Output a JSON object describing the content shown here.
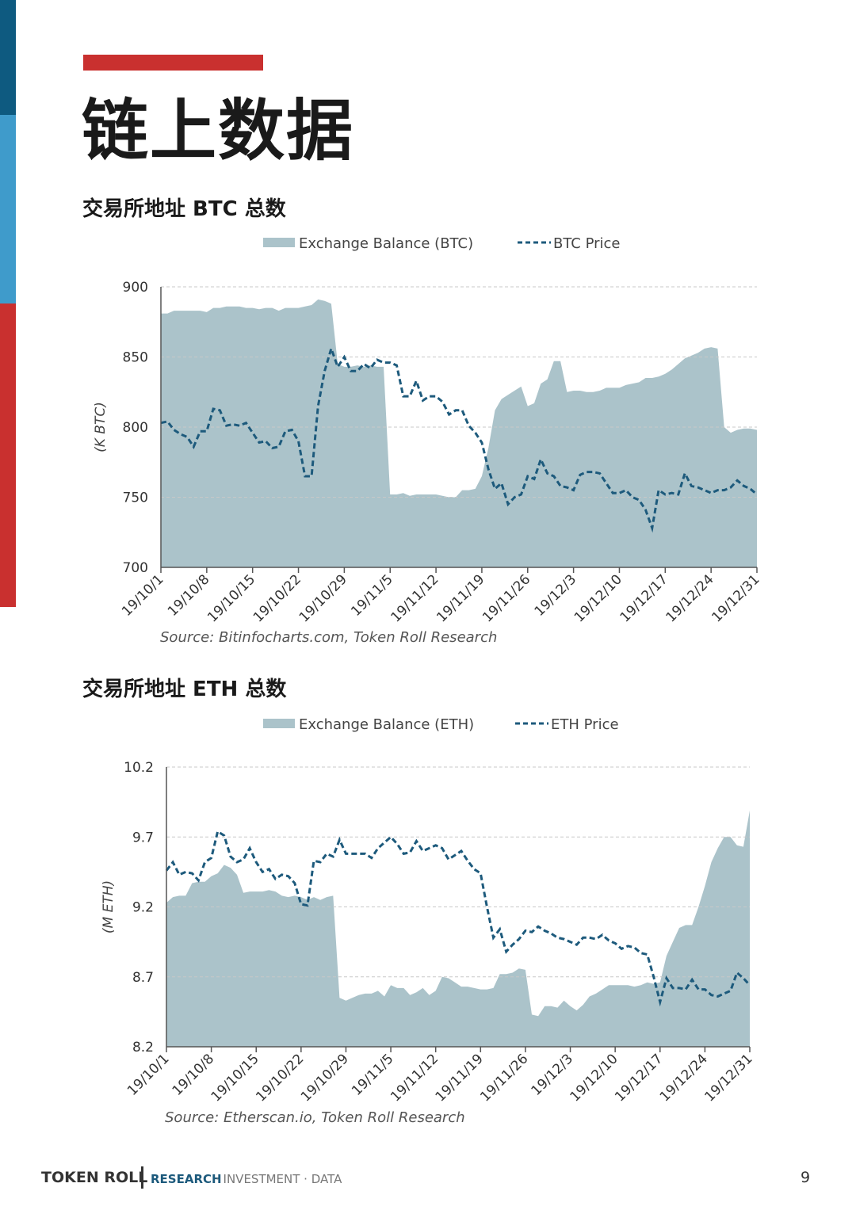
{
  "page": {
    "title": "链上数据",
    "footer": {
      "brand": "TOKEN ROLL",
      "highlight": "RESEARCH",
      "rest": "· INVESTMENT · DATA",
      "page_number": "9"
    }
  },
  "chart_data": [
    {
      "type": "area",
      "title": "交易所地址 BTC 总数",
      "y_label": "(K BTC)",
      "source": "Source: Bitinfocharts.com, Token Roll Research",
      "x": [
        0,
        1,
        2,
        3,
        4,
        5,
        6,
        7,
        8,
        9,
        10,
        11,
        12,
        13,
        14,
        15,
        16,
        17,
        18,
        19,
        20,
        21,
        22,
        23,
        24,
        25,
        26,
        27,
        28,
        29,
        30,
        31,
        32,
        33,
        34,
        35,
        36,
        37,
        38,
        39,
        40,
        41,
        42,
        43,
        44,
        45,
        46,
        47,
        48,
        49,
        50,
        51,
        52,
        53,
        54,
        55,
        56,
        57,
        58,
        59,
        60,
        61,
        62,
        63,
        64,
        65,
        66,
        67,
        68,
        69,
        70,
        71,
        72,
        73,
        74,
        75,
        76,
        77,
        78,
        79,
        80,
        81,
        82,
        83,
        84,
        85,
        86,
        87,
        88,
        89,
        90,
        91
      ],
      "xlim": [
        0,
        91
      ],
      "xticks": [
        {
          "value": 0,
          "label": "19/10/1"
        },
        {
          "value": 7,
          "label": "19/10/8"
        },
        {
          "value": 14,
          "label": "19/10/15"
        },
        {
          "value": 21,
          "label": "19/10/22"
        },
        {
          "value": 28,
          "label": "19/10/29"
        },
        {
          "value": 35,
          "label": "19/11/5"
        },
        {
          "value": 42,
          "label": "19/11/12"
        },
        {
          "value": 49,
          "label": "19/11/19"
        },
        {
          "value": 56,
          "label": "19/11/26"
        },
        {
          "value": 63,
          "label": "19/12/3"
        },
        {
          "value": 70,
          "label": "19/12/10"
        },
        {
          "value": 77,
          "label": "19/12/17"
        },
        {
          "value": 84,
          "label": "19/12/24"
        },
        {
          "value": 91,
          "label": "19/12/31"
        }
      ],
      "ylim": [
        700,
        900
      ],
      "yticks": [
        700,
        750,
        800,
        850,
        900
      ],
      "grid": true,
      "series": [
        {
          "name": "Exchange Balance (BTC)",
          "kind": "area",
          "color": "#abc3ca",
          "values": [
            881,
            881,
            883,
            883,
            883,
            883,
            883,
            882,
            885,
            885,
            886,
            886,
            886,
            885,
            885,
            884,
            885,
            885,
            883,
            885,
            885,
            885,
            886,
            887,
            891,
            890,
            888,
            845,
            843,
            843,
            844,
            843,
            844,
            843,
            843,
            752,
            752,
            753,
            751,
            752,
            752,
            752,
            752,
            751,
            750,
            750,
            755,
            755,
            756,
            765,
            785,
            812,
            820,
            823,
            826,
            829,
            815,
            817,
            831,
            834,
            847,
            847,
            825,
            826,
            826,
            825,
            825,
            826,
            828,
            828,
            828,
            830,
            831,
            832,
            835,
            835,
            836,
            838,
            841,
            845,
            849,
            851,
            853,
            856,
            857,
            856,
            800,
            796,
            798,
            799,
            799,
            798
          ]
        },
        {
          "name": "BTC Price",
          "kind": "line",
          "color": "#1d5a7c",
          "values": [
            803,
            804,
            798,
            795,
            793,
            786,
            797,
            797,
            813,
            812,
            801,
            802,
            801,
            803,
            796,
            789,
            790,
            785,
            786,
            797,
            798,
            790,
            765,
            765,
            815,
            840,
            856,
            843,
            850,
            840,
            840,
            845,
            842,
            848,
            846,
            846,
            844,
            822,
            822,
            833,
            819,
            822,
            822,
            818,
            809,
            812,
            812,
            801,
            796,
            789,
            770,
            756,
            760,
            745,
            750,
            752,
            765,
            763,
            777,
            767,
            765,
            758,
            757,
            755,
            766,
            768,
            768,
            767,
            760,
            753,
            753,
            755,
            750,
            748,
            741,
            728,
            755,
            752,
            753,
            752,
            767,
            758,
            757,
            755,
            753,
            755,
            755,
            757,
            762,
            758,
            756,
            752
          ]
        }
      ]
    },
    {
      "type": "area",
      "title": "交易所地址 ETH 总数",
      "y_label": "(M ETH)",
      "source": "Source: Etherscan.io, Token Roll Research",
      "x": [
        0,
        1,
        2,
        3,
        4,
        5,
        6,
        7,
        8,
        9,
        10,
        11,
        12,
        13,
        14,
        15,
        16,
        17,
        18,
        19,
        20,
        21,
        22,
        23,
        24,
        25,
        26,
        27,
        28,
        29,
        30,
        31,
        32,
        33,
        34,
        35,
        36,
        37,
        38,
        39,
        40,
        41,
        42,
        43,
        44,
        45,
        46,
        47,
        48,
        49,
        50,
        51,
        52,
        53,
        54,
        55,
        56,
        57,
        58,
        59,
        60,
        61,
        62,
        63,
        64,
        65,
        66,
        67,
        68,
        69,
        70,
        71,
        72,
        73,
        74,
        75,
        76,
        77,
        78,
        79,
        80,
        81,
        82,
        83,
        84,
        85,
        86,
        87,
        88,
        89,
        90,
        91
      ],
      "xlim": [
        0,
        91
      ],
      "xticks": [
        {
          "value": 0,
          "label": "19/10/1"
        },
        {
          "value": 7,
          "label": "19/10/8"
        },
        {
          "value": 14,
          "label": "19/10/15"
        },
        {
          "value": 21,
          "label": "19/10/22"
        },
        {
          "value": 28,
          "label": "19/10/29"
        },
        {
          "value": 35,
          "label": "19/11/5"
        },
        {
          "value": 42,
          "label": "19/11/12"
        },
        {
          "value": 49,
          "label": "19/11/19"
        },
        {
          "value": 56,
          "label": "19/11/26"
        },
        {
          "value": 63,
          "label": "19/12/3"
        },
        {
          "value": 70,
          "label": "19/12/10"
        },
        {
          "value": 77,
          "label": "19/12/17"
        },
        {
          "value": 84,
          "label": "19/12/24"
        },
        {
          "value": 91,
          "label": "19/12/31"
        }
      ],
      "ylim": [
        8.2,
        10.2
      ],
      "yticks": [
        8.2,
        8.7,
        9.2,
        9.7,
        10.2
      ],
      "grid": true,
      "series": [
        {
          "name": "Exchange Balance (ETH)",
          "kind": "area",
          "color": "#abc3ca",
          "values": [
            9.23,
            9.27,
            9.28,
            9.28,
            9.37,
            9.38,
            9.38,
            9.42,
            9.44,
            9.5,
            9.48,
            9.43,
            9.3,
            9.31,
            9.31,
            9.31,
            9.32,
            9.31,
            9.28,
            9.27,
            9.28,
            9.27,
            9.25,
            9.27,
            9.25,
            9.27,
            9.28,
            8.55,
            8.53,
            8.55,
            8.57,
            8.58,
            8.58,
            8.6,
            8.56,
            8.64,
            8.62,
            8.62,
            8.57,
            8.59,
            8.62,
            8.57,
            8.6,
            8.7,
            8.69,
            8.66,
            8.63,
            8.63,
            8.62,
            8.61,
            8.61,
            8.62,
            8.72,
            8.72,
            8.73,
            8.76,
            8.75,
            8.43,
            8.42,
            8.49,
            8.49,
            8.48,
            8.53,
            8.49,
            8.46,
            8.5,
            8.56,
            8.58,
            8.61,
            8.64,
            8.64,
            8.64,
            8.64,
            8.63,
            8.64,
            8.66,
            8.65,
            8.66,
            8.85,
            8.95,
            9.05,
            9.07,
            9.07,
            9.2,
            9.35,
            9.52,
            9.62,
            9.7,
            9.7,
            9.64,
            9.63,
            9.89
          ]
        },
        {
          "name": "ETH Price",
          "kind": "line",
          "color": "#1d5a7c",
          "values": [
            9.46,
            9.52,
            9.43,
            9.45,
            9.44,
            9.39,
            9.52,
            9.55,
            9.74,
            9.71,
            9.56,
            9.52,
            9.54,
            9.62,
            9.52,
            9.45,
            9.47,
            9.4,
            9.43,
            9.42,
            9.37,
            9.22,
            9.21,
            9.53,
            9.52,
            9.58,
            9.56,
            9.68,
            9.58,
            9.58,
            9.58,
            9.58,
            9.55,
            9.62,
            9.66,
            9.7,
            9.65,
            9.58,
            9.59,
            9.67,
            9.6,
            9.62,
            9.64,
            9.62,
            9.54,
            9.57,
            9.6,
            9.53,
            9.47,
            9.44,
            9.2,
            8.98,
            9.04,
            8.88,
            8.93,
            8.97,
            9.03,
            9.02,
            9.06,
            9.03,
            9.01,
            8.98,
            8.97,
            8.95,
            8.93,
            8.98,
            8.98,
            8.97,
            9,
            8.96,
            8.94,
            8.9,
            8.92,
            8.91,
            8.87,
            8.86,
            8.7,
            8.52,
            8.69,
            8.62,
            8.62,
            8.61,
            8.68,
            8.61,
            8.61,
            8.57,
            8.56,
            8.58,
            8.6,
            8.73,
            8.69,
            8.64
          ]
        }
      ]
    }
  ]
}
